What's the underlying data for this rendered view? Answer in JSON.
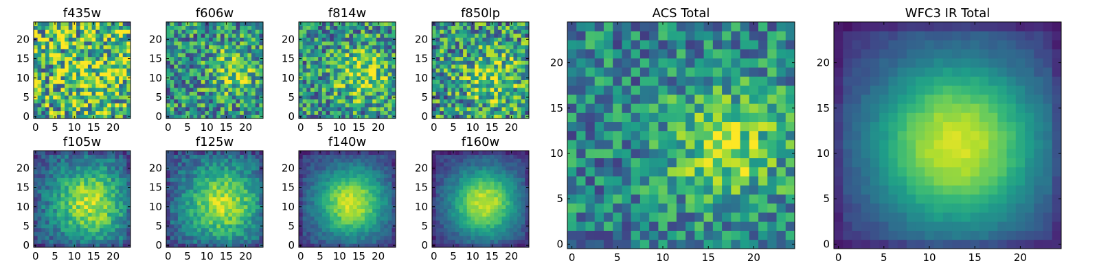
{
  "figure": {
    "colormap": "viridis",
    "axis_color": "#000000",
    "background": "#ffffff"
  },
  "chart_data": [
    {
      "id": "f435w",
      "type": "heatmap",
      "title": "f435w",
      "grid_size": 25,
      "x_ticks": [
        "0",
        "5",
        "10",
        "15",
        "20"
      ],
      "y_ticks": [
        "0",
        "5",
        "10",
        "15",
        "20"
      ],
      "xlim": [
        0,
        25
      ],
      "ylim": [
        0,
        25
      ],
      "source": {
        "cx": 15,
        "cy": 11,
        "sigma": 7,
        "peak": 0.18
      },
      "noise": 0.9,
      "base": 0.62,
      "seed": 11
    },
    {
      "id": "f606w",
      "type": "heatmap",
      "title": "f606w",
      "grid_size": 25,
      "x_ticks": [
        "0",
        "5",
        "10",
        "15",
        "20"
      ],
      "y_ticks": [
        "0",
        "5",
        "10",
        "15",
        "20"
      ],
      "xlim": [
        0,
        25
      ],
      "ylim": [
        0,
        25
      ],
      "source": {
        "cx": 17,
        "cy": 12,
        "sigma": 4.5,
        "peak": 0.3
      },
      "noise": 0.7,
      "base": 0.5,
      "seed": 23
    },
    {
      "id": "f814w",
      "type": "heatmap",
      "title": "f814w",
      "grid_size": 25,
      "x_ticks": [
        "0",
        "5",
        "10",
        "15",
        "20"
      ],
      "y_ticks": [
        "0",
        "5",
        "10",
        "15",
        "20"
      ],
      "xlim": [
        0,
        25
      ],
      "ylim": [
        0,
        25
      ],
      "source": {
        "cx": 16,
        "cy": 11,
        "sigma": 5,
        "peak": 0.35
      },
      "noise": 0.7,
      "base": 0.5,
      "seed": 37
    },
    {
      "id": "f850lp",
      "type": "heatmap",
      "title": "f850lp",
      "grid_size": 25,
      "x_ticks": [
        "0",
        "5",
        "10",
        "15",
        "20"
      ],
      "y_ticks": [
        "0",
        "5",
        "10",
        "15",
        "20"
      ],
      "xlim": [
        0,
        25
      ],
      "ylim": [
        0,
        25
      ],
      "source": {
        "cx": 15,
        "cy": 10,
        "sigma": 5,
        "peak": 0.3
      },
      "noise": 0.75,
      "base": 0.52,
      "seed": 41
    },
    {
      "id": "f105w",
      "type": "heatmap",
      "title": "f105w",
      "grid_size": 25,
      "x_ticks": [
        "0",
        "5",
        "10",
        "15",
        "20"
      ],
      "y_ticks": [
        "0",
        "5",
        "10",
        "15",
        "20"
      ],
      "xlim": [
        0,
        25
      ],
      "ylim": [
        0,
        25
      ],
      "source": {
        "cx": 14,
        "cy": 11,
        "sigma": 7,
        "peak": 0.65
      },
      "noise": 0.3,
      "base": 0.25,
      "seed": 53
    },
    {
      "id": "f125w",
      "type": "heatmap",
      "title": "f125w",
      "grid_size": 25,
      "x_ticks": [
        "0",
        "5",
        "10",
        "15",
        "20"
      ],
      "y_ticks": [
        "0",
        "5",
        "10",
        "15",
        "20"
      ],
      "xlim": [
        0,
        25
      ],
      "ylim": [
        0,
        25
      ],
      "source": {
        "cx": 14,
        "cy": 11,
        "sigma": 7,
        "peak": 0.65
      },
      "noise": 0.28,
      "base": 0.25,
      "seed": 67
    },
    {
      "id": "f140w",
      "type": "heatmap",
      "title": "f140w",
      "grid_size": 25,
      "x_ticks": [
        "0",
        "5",
        "10",
        "15",
        "20"
      ],
      "y_ticks": [
        "0",
        "5",
        "10",
        "15",
        "20"
      ],
      "xlim": [
        0,
        25
      ],
      "ylim": [
        0,
        25
      ],
      "source": {
        "cx": 13,
        "cy": 11,
        "sigma": 6.5,
        "peak": 0.75
      },
      "noise": 0.16,
      "base": 0.18,
      "seed": 71
    },
    {
      "id": "f160w",
      "type": "heatmap",
      "title": "f160w",
      "grid_size": 25,
      "x_ticks": [
        "0",
        "5",
        "10",
        "15",
        "20"
      ],
      "y_ticks": [
        "0",
        "5",
        "10",
        "15",
        "20"
      ],
      "xlim": [
        0,
        25
      ],
      "ylim": [
        0,
        25
      ],
      "source": {
        "cx": 13,
        "cy": 11,
        "sigma": 6.5,
        "peak": 0.78
      },
      "noise": 0.14,
      "base": 0.15,
      "seed": 83
    },
    {
      "id": "acs-total",
      "type": "heatmap",
      "title": "ACS Total",
      "grid_size": 25,
      "x_ticks": [
        "0",
        "5",
        "10",
        "15",
        "20"
      ],
      "y_ticks": [
        "0",
        "5",
        "10",
        "15",
        "20"
      ],
      "xlim": [
        0,
        25
      ],
      "ylim": [
        0,
        25
      ],
      "source": {
        "cx": 17,
        "cy": 11,
        "sigma": 4.5,
        "peak": 0.38
      },
      "noise": 0.55,
      "base": 0.45,
      "seed": 97
    },
    {
      "id": "wfc3-ir-total",
      "type": "heatmap",
      "title": "WFC3 IR Total",
      "grid_size": 25,
      "x_ticks": [
        "0",
        "5",
        "10",
        "15",
        "20"
      ],
      "y_ticks": [
        "0",
        "5",
        "10",
        "15",
        "20"
      ],
      "xlim": [
        0,
        25
      ],
      "ylim": [
        0,
        25
      ],
      "source": {
        "cx": 13,
        "cy": 11,
        "sigma": 7,
        "peak": 0.82
      },
      "noise": 0.06,
      "base": 0.12,
      "seed": 101
    }
  ]
}
